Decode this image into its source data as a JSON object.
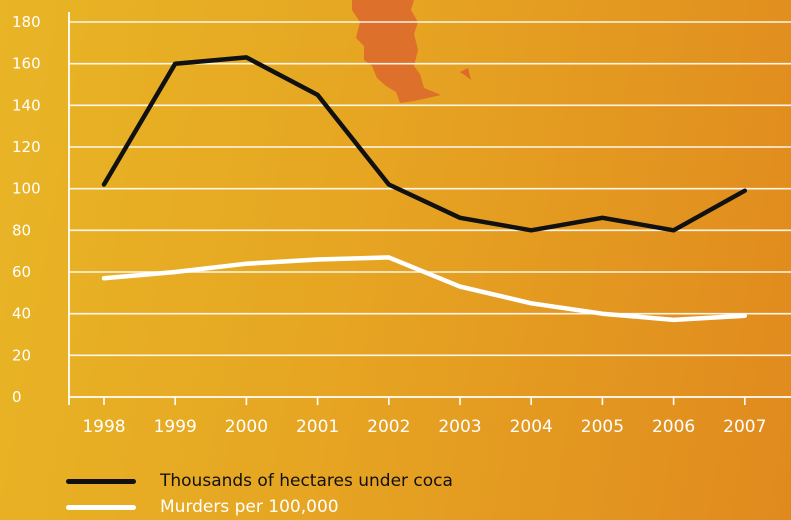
{
  "chart_data": {
    "type": "line",
    "x": [
      "1998",
      "1999",
      "2000",
      "2001",
      "2002",
      "2003",
      "2004",
      "2005",
      "2006",
      "2007"
    ],
    "ylim": [
      0,
      180
    ],
    "yticks": [
      0,
      20,
      40,
      60,
      80,
      100,
      120,
      140,
      160,
      180
    ],
    "grid": true,
    "legend_placement": "bottom-left",
    "series": [
      {
        "name": "Thousands of hectares under coca",
        "color": "#111111",
        "values": [
          102,
          160,
          163,
          145,
          102,
          86,
          80,
          86,
          80,
          99
        ]
      },
      {
        "name": "Murders per 100,000",
        "color": "#ffffff",
        "values": [
          57,
          60,
          64,
          66,
          67,
          53,
          45,
          40,
          37,
          39
        ]
      }
    ]
  },
  "colors": {
    "background_start": "#e8b526",
    "background_end": "#e08a1e",
    "map_decoration": "#db6a2c",
    "axis": "#ffffff"
  },
  "legend": {
    "items": [
      {
        "label": "Thousands of hectares under coca",
        "color": "#111111"
      },
      {
        "label": "Murders per 100,000",
        "color": "#ffffff"
      }
    ]
  }
}
